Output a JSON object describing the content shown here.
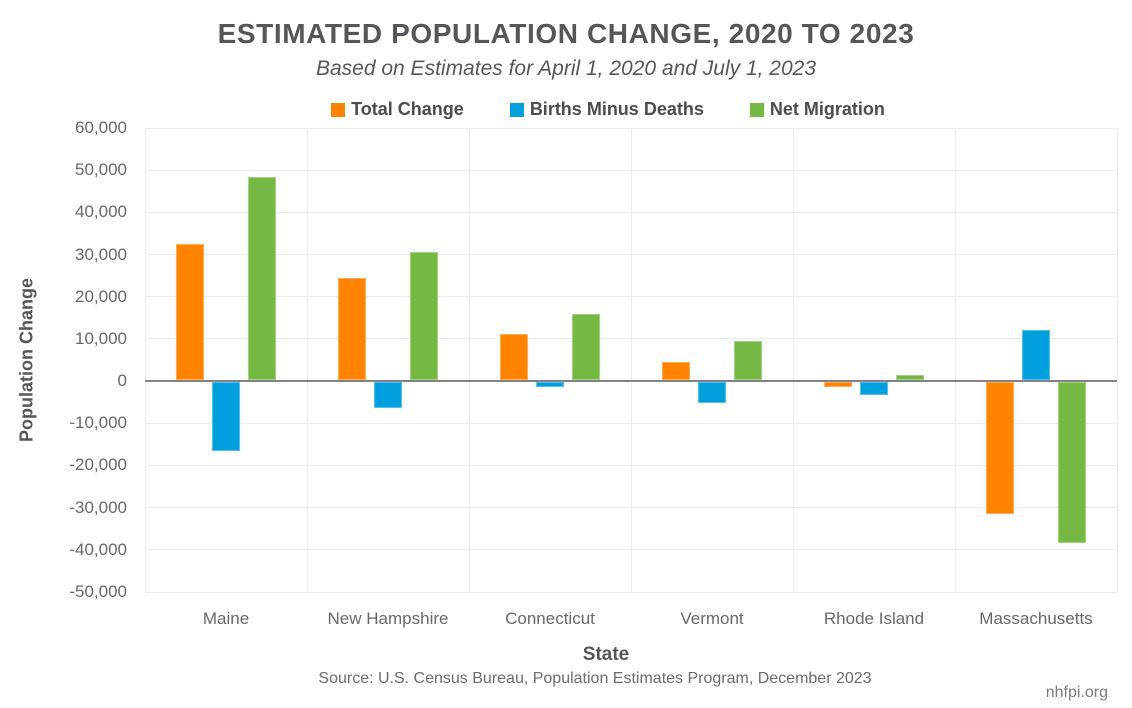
{
  "title": "ESTIMATED POPULATION CHANGE, 2020 TO 2023",
  "subtitle": "Based on Estimates for April 1, 2020 and July 1, 2023",
  "footer": {
    "source": "Source: U.S. Census Bureau, Population Estimates Program, December 2023",
    "watermark": "nhfpi.org"
  },
  "colors": {
    "title_text": "#54565A",
    "axis_text": "#67686B",
    "gridline": "#ECECEC",
    "zero_line": "#818386",
    "total_change": "#FF8300",
    "births_minus_deaths": "#009FDE",
    "net_migration": "#76B844"
  },
  "chart_data": {
    "type": "bar",
    "title": "ESTIMATED POPULATION CHANGE, 2020 TO 2023",
    "subtitle": "Based on Estimates for April 1, 2020 and July 1, 2023",
    "categories": [
      "Maine",
      "New Hampshire",
      "Connecticut",
      "Vermont",
      "Rhode Island",
      "Massachusetts"
    ],
    "series": [
      {
        "name": "Total Change",
        "color": "#FF8300",
        "values": [
          32500,
          24500,
          11200,
          4500,
          -1500,
          -31600
        ]
      },
      {
        "name": "Births Minus Deaths",
        "color": "#009FDE",
        "values": [
          -16500,
          -6300,
          -1400,
          -5100,
          -3400,
          12100
        ]
      },
      {
        "name": "Net Migration",
        "color": "#76B844",
        "values": [
          48500,
          30500,
          16000,
          9400,
          1400,
          -38400
        ]
      }
    ],
    "xlabel": "State",
    "ylabel": "Population Change",
    "ylim": [
      -50000,
      60000
    ],
    "ytick_step": 10000,
    "ytick_labels": [
      "60,000",
      "50,000",
      "40,000",
      "30,000",
      "20,000",
      "10,000",
      "0",
      "-10,000",
      "-20,000",
      "-30,000",
      "-40,000",
      "-50,000"
    ],
    "legend_position": "top",
    "grid": true
  }
}
